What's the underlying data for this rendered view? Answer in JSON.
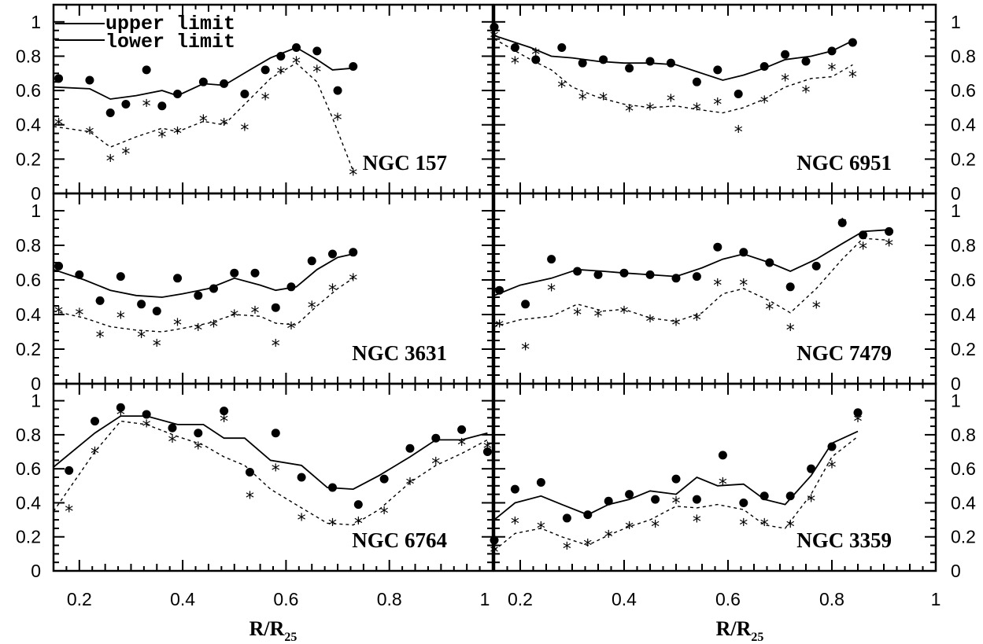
{
  "legend": {
    "upper": "upper limit",
    "lower": "lower limit"
  },
  "axes": {
    "xlabel_main": "R/R",
    "xlabel_sub": "25",
    "y_ticks": [
      0,
      0.2,
      0.4,
      0.6,
      0.8,
      1
    ],
    "y_tick_labels": [
      "0",
      "0.2",
      "0.4",
      "0.6",
      "0.8",
      "1"
    ],
    "x_ticks": [
      0.2,
      0.4,
      0.6,
      0.8,
      1
    ],
    "x_tick_labels": [
      "0.2",
      "0.4",
      "0.6",
      "0.8",
      "1"
    ]
  },
  "chart_data": [
    {
      "type": "scatter",
      "panel": "NGC 157",
      "xlim": [
        0.15,
        1.0
      ],
      "ylim": [
        0,
        1.1
      ],
      "series": [
        {
          "name": "upper limit",
          "style": "line-solid",
          "x": [
            0.15,
            0.22,
            0.26,
            0.31,
            0.36,
            0.39,
            0.44,
            0.48,
            0.53,
            0.57,
            0.62,
            0.66,
            0.69,
            0.73
          ],
          "y": [
            0.62,
            0.61,
            0.55,
            0.57,
            0.6,
            0.57,
            0.64,
            0.63,
            0.72,
            0.79,
            0.85,
            0.78,
            0.72,
            0.73
          ]
        },
        {
          "style": "line-dashed",
          "x": [
            0.15,
            0.22,
            0.26,
            0.31,
            0.36,
            0.39,
            0.44,
            0.48,
            0.53,
            0.57,
            0.62,
            0.66,
            0.69,
            0.73
          ],
          "y": [
            0.39,
            0.36,
            0.27,
            0.33,
            0.38,
            0.36,
            0.42,
            0.4,
            0.55,
            0.67,
            0.76,
            0.65,
            0.44,
            0.13
          ]
        },
        {
          "style": "dot",
          "x": [
            0.16,
            0.22,
            0.26,
            0.29,
            0.33,
            0.36,
            0.39,
            0.44,
            0.48,
            0.52,
            0.56,
            0.59,
            0.62,
            0.66,
            0.7,
            0.73
          ],
          "y": [
            0.67,
            0.66,
            0.47,
            0.52,
            0.72,
            0.51,
            0.58,
            0.65,
            0.64,
            0.58,
            0.72,
            0.8,
            0.85,
            0.83,
            0.6,
            0.74
          ]
        },
        {
          "style": "star",
          "x": [
            0.16,
            0.22,
            0.26,
            0.29,
            0.33,
            0.36,
            0.39,
            0.44,
            0.48,
            0.52,
            0.56,
            0.59,
            0.62,
            0.66,
            0.7,
            0.73
          ],
          "y": [
            0.41,
            0.36,
            0.2,
            0.24,
            0.52,
            0.34,
            0.36,
            0.43,
            0.41,
            0.38,
            0.56,
            0.71,
            0.77,
            0.72,
            0.44,
            0.12
          ]
        }
      ]
    },
    {
      "type": "scatter",
      "panel": "NGC 6951",
      "xlim": [
        0.15,
        1.0
      ],
      "ylim": [
        0,
        1.1
      ],
      "series": [
        {
          "style": "line-solid",
          "x": [
            0.15,
            0.22,
            0.26,
            0.3,
            0.35,
            0.4,
            0.45,
            0.5,
            0.54,
            0.59,
            0.63,
            0.67,
            0.71,
            0.76,
            0.8,
            0.84
          ],
          "y": [
            0.92,
            0.85,
            0.8,
            0.79,
            0.77,
            0.76,
            0.76,
            0.75,
            0.71,
            0.66,
            0.69,
            0.73,
            0.78,
            0.8,
            0.83,
            0.89
          ]
        },
        {
          "style": "line-dashed",
          "x": [
            0.15,
            0.22,
            0.26,
            0.3,
            0.35,
            0.4,
            0.45,
            0.5,
            0.54,
            0.59,
            0.63,
            0.67,
            0.71,
            0.76,
            0.8,
            0.84
          ],
          "y": [
            0.9,
            0.78,
            0.72,
            0.62,
            0.56,
            0.52,
            0.5,
            0.51,
            0.49,
            0.47,
            0.5,
            0.55,
            0.62,
            0.67,
            0.68,
            0.75
          ]
        },
        {
          "style": "dot",
          "x": [
            0.15,
            0.19,
            0.23,
            0.28,
            0.32,
            0.36,
            0.41,
            0.45,
            0.49,
            0.54,
            0.58,
            0.62,
            0.67,
            0.71,
            0.75,
            0.8,
            0.84
          ],
          "y": [
            0.97,
            0.85,
            0.78,
            0.85,
            0.76,
            0.78,
            0.73,
            0.77,
            0.76,
            0.65,
            0.72,
            0.58,
            0.74,
            0.81,
            0.77,
            0.83,
            0.88
          ]
        },
        {
          "style": "star",
          "x": [
            0.15,
            0.19,
            0.23,
            0.28,
            0.32,
            0.36,
            0.41,
            0.45,
            0.49,
            0.54,
            0.58,
            0.62,
            0.67,
            0.71,
            0.75,
            0.8,
            0.84
          ],
          "y": [
            0.92,
            0.77,
            0.82,
            0.63,
            0.56,
            0.56,
            0.49,
            0.5,
            0.55,
            0.5,
            0.53,
            0.37,
            0.54,
            0.67,
            0.6,
            0.73,
            0.69
          ]
        }
      ]
    },
    {
      "type": "scatter",
      "panel": "NGC 3631",
      "xlim": [
        0.15,
        1.0
      ],
      "ylim": [
        0,
        1.1
      ],
      "series": [
        {
          "style": "line-solid",
          "x": [
            0.15,
            0.21,
            0.26,
            0.31,
            0.36,
            0.4,
            0.45,
            0.5,
            0.55,
            0.58,
            0.62,
            0.66,
            0.7,
            0.73
          ],
          "y": [
            0.66,
            0.6,
            0.54,
            0.51,
            0.5,
            0.52,
            0.55,
            0.61,
            0.57,
            0.54,
            0.56,
            0.66,
            0.73,
            0.75
          ]
        },
        {
          "style": "line-dashed",
          "x": [
            0.15,
            0.21,
            0.26,
            0.31,
            0.36,
            0.4,
            0.45,
            0.5,
            0.55,
            0.58,
            0.62,
            0.66,
            0.7,
            0.73
          ],
          "y": [
            0.42,
            0.38,
            0.33,
            0.31,
            0.3,
            0.32,
            0.35,
            0.4,
            0.39,
            0.35,
            0.34,
            0.45,
            0.55,
            0.61
          ]
        },
        {
          "style": "dot",
          "x": [
            0.16,
            0.2,
            0.24,
            0.28,
            0.32,
            0.35,
            0.39,
            0.43,
            0.46,
            0.5,
            0.54,
            0.58,
            0.61,
            0.65,
            0.69,
            0.73
          ],
          "y": [
            0.68,
            0.63,
            0.48,
            0.62,
            0.46,
            0.42,
            0.61,
            0.51,
            0.55,
            0.64,
            0.64,
            0.44,
            0.56,
            0.71,
            0.75,
            0.76
          ]
        },
        {
          "style": "star",
          "x": [
            0.16,
            0.2,
            0.24,
            0.28,
            0.32,
            0.35,
            0.39,
            0.43,
            0.46,
            0.5,
            0.54,
            0.58,
            0.61,
            0.65,
            0.69,
            0.73
          ],
          "y": [
            0.42,
            0.41,
            0.28,
            0.39,
            0.28,
            0.23,
            0.35,
            0.32,
            0.34,
            0.4,
            0.42,
            0.23,
            0.33,
            0.45,
            0.55,
            0.61
          ]
        }
      ]
    },
    {
      "type": "scatter",
      "panel": "NGC 7479",
      "xlim": [
        0.15,
        1.0
      ],
      "ylim": [
        0,
        1.1
      ],
      "series": [
        {
          "style": "line-solid",
          "x": [
            0.15,
            0.2,
            0.26,
            0.31,
            0.36,
            0.4,
            0.45,
            0.5,
            0.55,
            0.59,
            0.63,
            0.68,
            0.72,
            0.77,
            0.82,
            0.86,
            0.91
          ],
          "y": [
            0.51,
            0.57,
            0.61,
            0.66,
            0.65,
            0.64,
            0.63,
            0.62,
            0.67,
            0.72,
            0.75,
            0.7,
            0.65,
            0.72,
            0.81,
            0.88,
            0.89
          ]
        },
        {
          "style": "line-dashed",
          "x": [
            0.15,
            0.2,
            0.26,
            0.31,
            0.36,
            0.4,
            0.45,
            0.5,
            0.55,
            0.59,
            0.63,
            0.68,
            0.72,
            0.77,
            0.82,
            0.86,
            0.91
          ],
          "y": [
            0.33,
            0.37,
            0.39,
            0.46,
            0.42,
            0.43,
            0.38,
            0.36,
            0.41,
            0.52,
            0.55,
            0.48,
            0.41,
            0.55,
            0.72,
            0.84,
            0.83
          ]
        },
        {
          "style": "dot",
          "x": [
            0.16,
            0.21,
            0.26,
            0.31,
            0.35,
            0.4,
            0.45,
            0.5,
            0.54,
            0.58,
            0.63,
            0.68,
            0.72,
            0.77,
            0.82,
            0.86,
            0.91
          ],
          "y": [
            0.54,
            0.46,
            0.72,
            0.65,
            0.63,
            0.64,
            0.63,
            0.61,
            0.62,
            0.79,
            0.76,
            0.7,
            0.56,
            0.68,
            0.93,
            0.86,
            0.88
          ]
        },
        {
          "style": "star",
          "x": [
            0.16,
            0.21,
            0.26,
            0.31,
            0.35,
            0.4,
            0.45,
            0.5,
            0.54,
            0.58,
            0.63,
            0.68,
            0.72,
            0.77,
            0.82,
            0.86,
            0.91
          ],
          "y": [
            0.34,
            0.21,
            0.55,
            0.41,
            0.4,
            0.42,
            0.37,
            0.35,
            0.38,
            0.58,
            0.58,
            0.44,
            0.32,
            0.45,
            0.93,
            0.79,
            0.81
          ]
        }
      ]
    },
    {
      "type": "scatter",
      "panel": "NGC 6764",
      "xlim": [
        0.15,
        1.0
      ],
      "ylim": [
        0,
        1.1
      ],
      "series": [
        {
          "style": "line-solid",
          "x": [
            0.15,
            0.23,
            0.28,
            0.33,
            0.39,
            0.44,
            0.48,
            0.52,
            0.57,
            0.63,
            0.68,
            0.73,
            0.78,
            0.84,
            0.89,
            0.94,
            0.99
          ],
          "y": [
            0.61,
            0.81,
            0.91,
            0.91,
            0.86,
            0.86,
            0.78,
            0.78,
            0.65,
            0.62,
            0.49,
            0.48,
            0.56,
            0.67,
            0.77,
            0.77,
            0.81
          ]
        },
        {
          "style": "line-dashed",
          "x": [
            0.15,
            0.23,
            0.28,
            0.33,
            0.39,
            0.44,
            0.48,
            0.52,
            0.57,
            0.63,
            0.68,
            0.73,
            0.78,
            0.84,
            0.89,
            0.94,
            0.99
          ],
          "y": [
            0.35,
            0.7,
            0.88,
            0.86,
            0.79,
            0.74,
            0.67,
            0.62,
            0.48,
            0.37,
            0.28,
            0.27,
            0.36,
            0.52,
            0.62,
            0.69,
            0.77
          ]
        },
        {
          "style": "dot",
          "x": [
            0.18,
            0.23,
            0.28,
            0.33,
            0.38,
            0.43,
            0.48,
            0.53,
            0.58,
            0.63,
            0.69,
            0.74,
            0.79,
            0.84,
            0.89,
            0.94,
            0.99
          ],
          "y": [
            0.59,
            0.88,
            0.96,
            0.92,
            0.84,
            0.81,
            0.94,
            0.58,
            0.81,
            0.55,
            0.49,
            0.39,
            0.54,
            0.72,
            0.78,
            0.83,
            0.7
          ]
        },
        {
          "style": "star",
          "x": [
            0.18,
            0.23,
            0.28,
            0.33,
            0.38,
            0.43,
            0.48,
            0.53,
            0.58,
            0.63,
            0.69,
            0.74,
            0.79,
            0.84,
            0.89,
            0.94,
            0.99
          ],
          "y": [
            0.36,
            0.7,
            0.93,
            0.86,
            0.77,
            0.73,
            0.89,
            0.44,
            0.6,
            0.31,
            0.28,
            0.29,
            0.35,
            0.52,
            0.64,
            0.75,
            0.73
          ]
        }
      ]
    },
    {
      "type": "scatter",
      "panel": "NGC 3359",
      "xlim": [
        0.15,
        1.0
      ],
      "ylim": [
        0,
        1.1
      ],
      "series": [
        {
          "style": "line-solid",
          "x": [
            0.15,
            0.19,
            0.24,
            0.28,
            0.33,
            0.37,
            0.41,
            0.45,
            0.5,
            0.54,
            0.58,
            0.63,
            0.67,
            0.71,
            0.76,
            0.8,
            0.85
          ],
          "y": [
            0.3,
            0.4,
            0.44,
            0.39,
            0.33,
            0.39,
            0.42,
            0.47,
            0.45,
            0.55,
            0.5,
            0.51,
            0.42,
            0.39,
            0.56,
            0.75,
            0.82
          ]
        },
        {
          "style": "line-dashed",
          "x": [
            0.15,
            0.19,
            0.24,
            0.28,
            0.33,
            0.37,
            0.41,
            0.45,
            0.5,
            0.54,
            0.58,
            0.63,
            0.67,
            0.71,
            0.76,
            0.8,
            0.85
          ],
          "y": [
            0.12,
            0.22,
            0.25,
            0.2,
            0.15,
            0.21,
            0.26,
            0.3,
            0.38,
            0.37,
            0.39,
            0.36,
            0.27,
            0.25,
            0.45,
            0.67,
            0.79
          ]
        },
        {
          "style": "dot",
          "x": [
            0.15,
            0.19,
            0.24,
            0.29,
            0.33,
            0.37,
            0.41,
            0.46,
            0.5,
            0.54,
            0.59,
            0.63,
            0.67,
            0.72,
            0.76,
            0.8,
            0.85
          ],
          "y": [
            0.18,
            0.48,
            0.52,
            0.31,
            0.33,
            0.41,
            0.45,
            0.42,
            0.54,
            0.42,
            0.68,
            0.4,
            0.44,
            0.44,
            0.6,
            0.73,
            0.93
          ]
        },
        {
          "style": "star",
          "x": [
            0.15,
            0.19,
            0.24,
            0.29,
            0.33,
            0.37,
            0.41,
            0.46,
            0.5,
            0.54,
            0.59,
            0.63,
            0.67,
            0.72,
            0.76,
            0.8,
            0.85
          ],
          "y": [
            0.12,
            0.29,
            0.26,
            0.14,
            0.16,
            0.21,
            0.26,
            0.27,
            0.41,
            0.3,
            0.52,
            0.28,
            0.28,
            0.27,
            0.42,
            0.62,
            0.89
          ]
        }
      ]
    }
  ]
}
